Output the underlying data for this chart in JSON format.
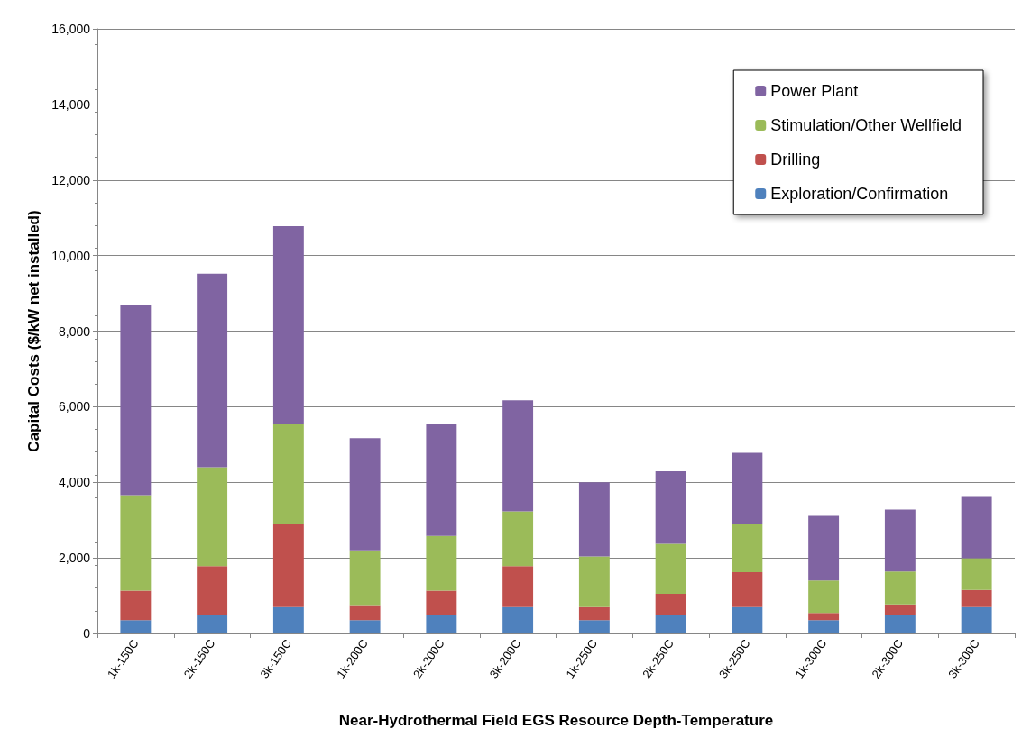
{
  "chart_data": {
    "type": "bar",
    "stacked": true,
    "xlabel": "Near-Hydrothermal Field EGS Resource Depth-Temperature",
    "ylabel": "Capital Costs ($/kW net installed)",
    "categories": [
      "1k-150C",
      "2k-150C",
      "3k-150C",
      "1k-200C",
      "2k-200C",
      "3k-200C",
      "1k-250C",
      "2k-250C",
      "3k-250C",
      "1k-300C",
      "2k-300C",
      "3k-300C"
    ],
    "series": [
      {
        "name": "Exploration/Confirmation",
        "color": "#4f81bd",
        "values": [
          350,
          500,
          700,
          350,
          500,
          700,
          350,
          500,
          700,
          350,
          500,
          700
        ]
      },
      {
        "name": "Drilling",
        "color": "#c0504d",
        "values": [
          780,
          1280,
          2200,
          400,
          630,
          1080,
          350,
          550,
          920,
          190,
          270,
          450
        ]
      },
      {
        "name": "Stimulation/Other Wellfield",
        "color": "#9bbb59",
        "values": [
          2530,
          2620,
          2650,
          1450,
          1450,
          1450,
          1340,
          1320,
          1280,
          860,
          870,
          840
        ]
      },
      {
        "name": "Power Plant",
        "color": "#8064a2",
        "values": [
          5040,
          5120,
          5230,
          2970,
          2970,
          2940,
          1960,
          1920,
          1880,
          1710,
          1640,
          1620
        ]
      }
    ],
    "ylim": [
      0,
      16000
    ],
    "yticks": [
      0,
      {
        "value": 2000,
        "label": "2,000"
      },
      {
        "value": 4000,
        "label": "4,000"
      },
      {
        "value": 6000,
        "label": "6,000"
      },
      {
        "value": 8000,
        "label": "8,000"
      },
      {
        "value": 10000,
        "label": "10,000"
      },
      {
        "value": 12000,
        "label": "12,000"
      },
      {
        "value": 14000,
        "label": "14,000"
      },
      {
        "value": 16000,
        "label": "16,000"
      }
    ],
    "grid": "y",
    "legend": "top right"
  }
}
